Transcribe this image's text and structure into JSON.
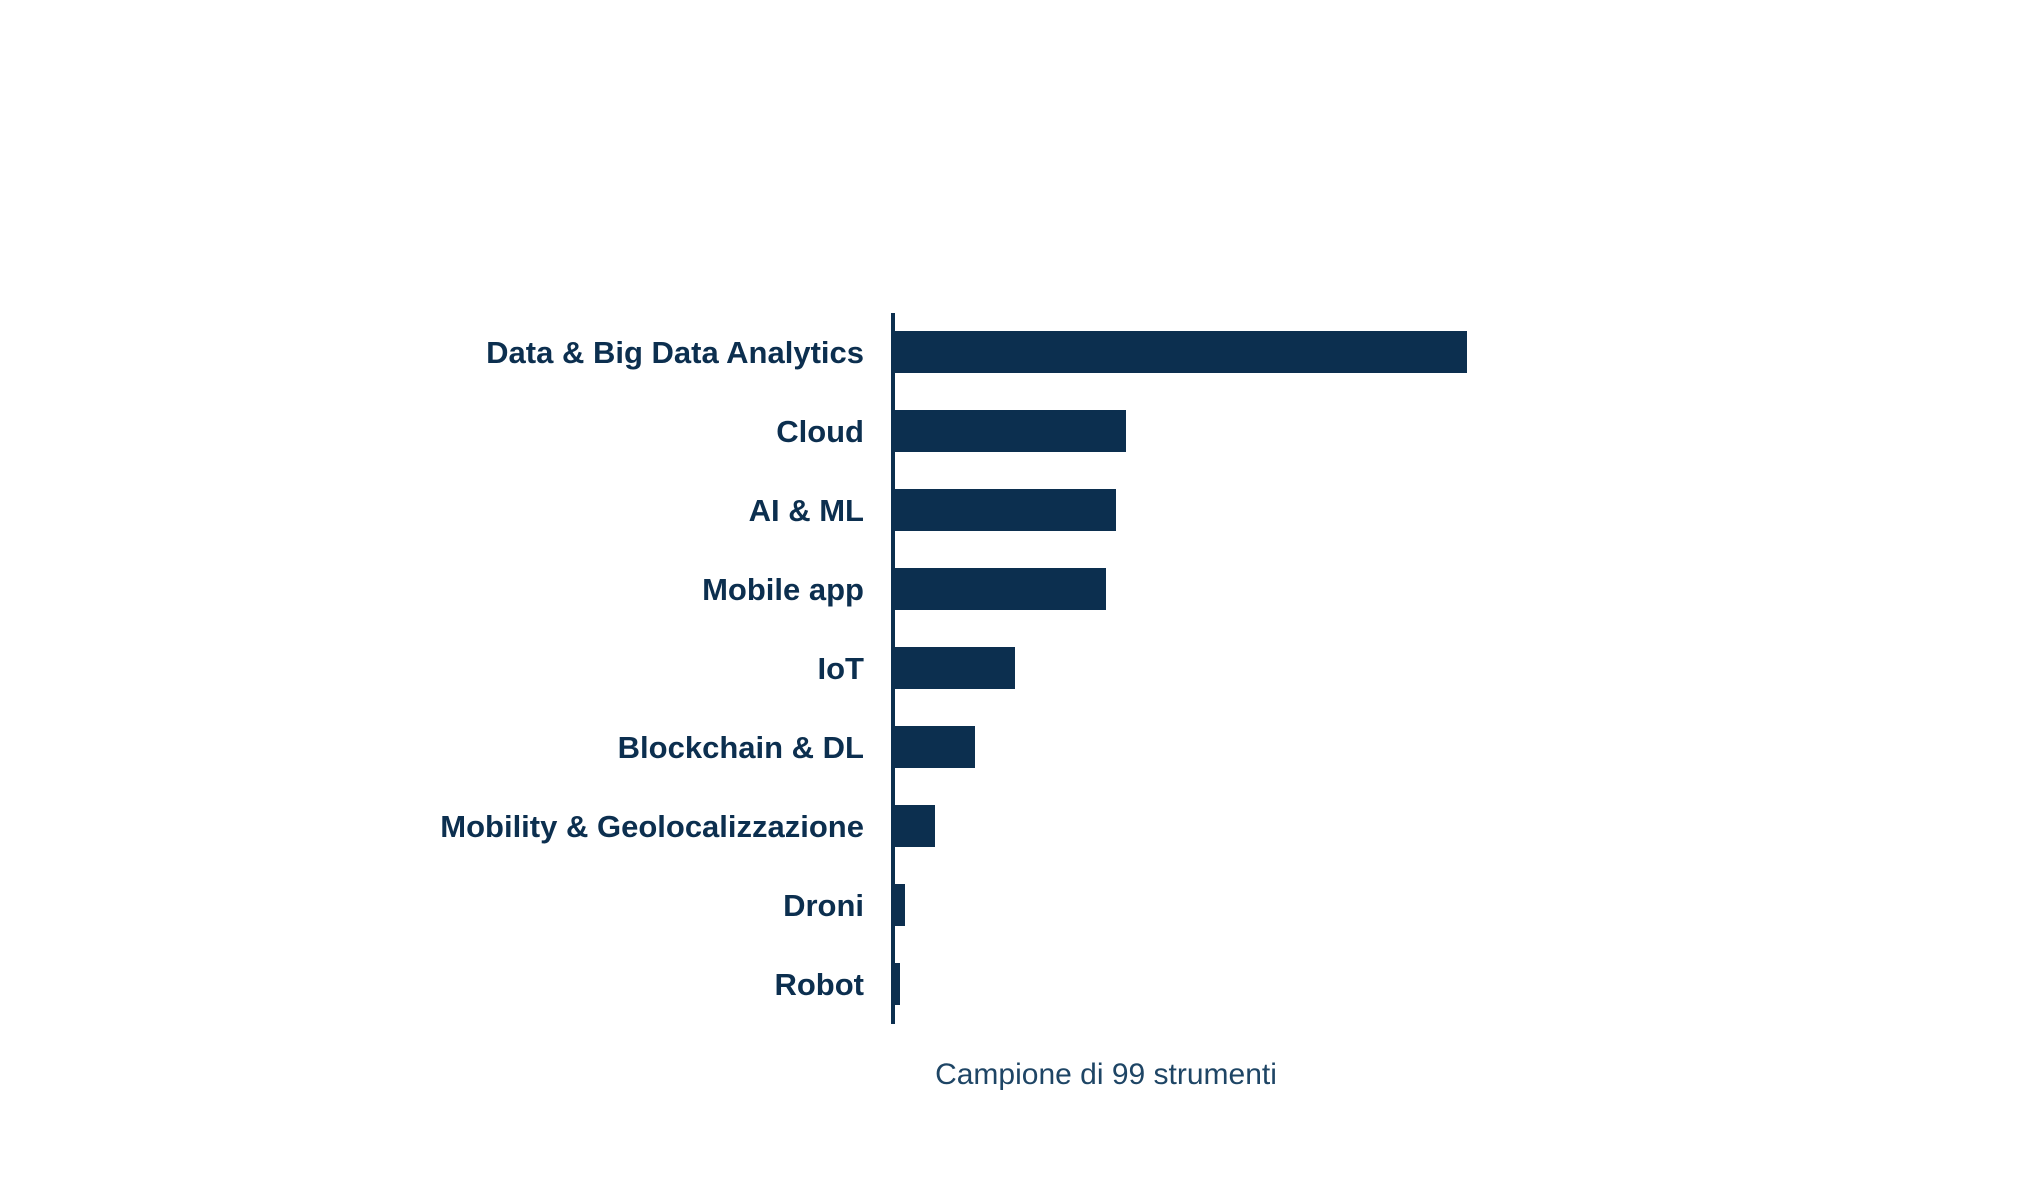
{
  "chart_data": {
    "type": "bar",
    "orientation": "horizontal",
    "title": "",
    "xlabel": "Campione di 99 strumenti",
    "ylabel": "",
    "sample_size": 99,
    "categories": [
      "Data & Big Data Analytics",
      "Cloud",
      "AI & ML",
      "Mobile app",
      "IoT",
      "Blockchain & DL",
      "Mobility & Geolocalizzazione",
      "Droni",
      "Robot"
    ],
    "values": [
      57,
      23,
      22,
      21,
      12,
      8,
      4,
      1,
      0.5
    ],
    "xlim": [
      0,
      60
    ],
    "grid": false,
    "legend": false,
    "value_labels_shown": false,
    "axis_ticks_shown": false,
    "colors": {
      "bar": "#0c2f4f",
      "label_text": "#0c2f4f",
      "axis_line": "#0c2f4f",
      "caption_text": "#1e4565",
      "background": "#ffffff"
    }
  }
}
